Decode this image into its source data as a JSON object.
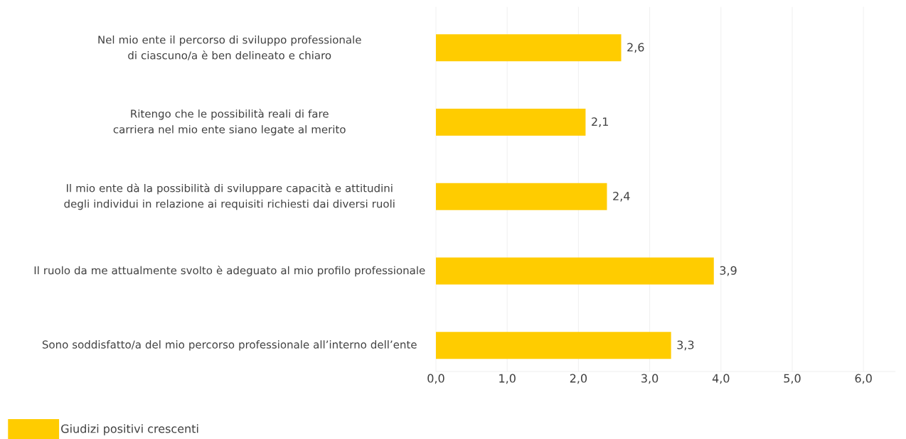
{
  "chart_data": {
    "type": "bar",
    "orientation": "horizontal",
    "categories": [
      "Nel mio ente il percorso di sviluppo professionale di ciascuno/a è ben delineato e chiaro",
      "Ritengo che le possibilità reali di fare carriera nel mio ente siano legate al merito",
      "Il mio ente dà la possibilità di sviluppare capacità e attitudini degli individui in relazione ai requisiti richiesti dai diversi ruoli",
      "Il ruolo da me attualmente svolto è adeguato al mio profilo professionale",
      "Sono soddisfatto/a del mio percorso professionale all’interno dell’ente"
    ],
    "series": [
      {
        "name": "Giudizi positivi crescenti",
        "color": "#ffcc00",
        "values": [
          2.6,
          2.1,
          2.4,
          3.9,
          3.3
        ],
        "value_labels": [
          "2,6",
          "2,1",
          "2,4",
          "3,9",
          "3,3"
        ]
      }
    ],
    "xlim": [
      0,
      6.45
    ],
    "xticks": [
      {
        "value": 0,
        "label": "0,0"
      },
      {
        "value": 1,
        "label": "1,0"
      },
      {
        "value": 2,
        "label": "2,0"
      },
      {
        "value": 3,
        "label": "3,0"
      },
      {
        "value": 4,
        "label": "4,0"
      },
      {
        "value": 5,
        "label": "5,0"
      },
      {
        "value": 6,
        "label": "6,0"
      }
    ],
    "grid": "x",
    "legend": "bottom left"
  }
}
